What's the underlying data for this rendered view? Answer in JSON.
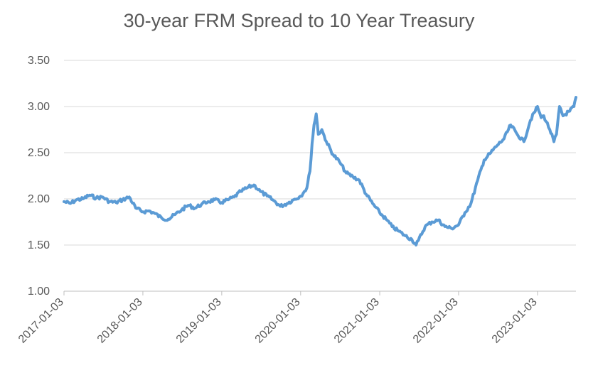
{
  "chart_data": {
    "type": "line",
    "title": "30-year FRM Spread to 10 Year Treasury",
    "xlabel": "",
    "ylabel": "",
    "ylim": [
      1.0,
      3.5
    ],
    "yticks": [
      "1.00",
      "1.50",
      "2.00",
      "2.50",
      "3.00",
      "3.50"
    ],
    "xtick_labels": [
      "2017-01-03",
      "2018-01-03",
      "2019-01-03",
      "2020-01-03",
      "2021-01-03",
      "2022-01-03",
      "2023-01-03"
    ],
    "xlim": [
      "2017-01-03",
      "2023-06-30"
    ],
    "grid": true,
    "legend": "none",
    "line_color": "#5b9bd5",
    "series": [
      {
        "points": [
          [
            "2017-01-03",
            1.97
          ],
          [
            "2017-02-01",
            1.95
          ],
          [
            "2017-03-01",
            1.99
          ],
          [
            "2017-04-01",
            2.0
          ],
          [
            "2017-05-01",
            2.04
          ],
          [
            "2017-06-01",
            2.01
          ],
          [
            "2017-07-01",
            2.02
          ],
          [
            "2017-08-01",
            1.97
          ],
          [
            "2017-09-01",
            1.96
          ],
          [
            "2017-10-01",
            1.99
          ],
          [
            "2017-11-01",
            2.02
          ],
          [
            "2017-12-01",
            1.9
          ],
          [
            "2018-01-03",
            1.86
          ],
          [
            "2018-02-01",
            1.87
          ],
          [
            "2018-03-01",
            1.84
          ],
          [
            "2018-04-01",
            1.79
          ],
          [
            "2018-05-01",
            1.78
          ],
          [
            "2018-06-01",
            1.83
          ],
          [
            "2018-07-01",
            1.88
          ],
          [
            "2018-08-01",
            1.93
          ],
          [
            "2018-09-01",
            1.9
          ],
          [
            "2018-10-01",
            1.94
          ],
          [
            "2018-11-01",
            1.97
          ],
          [
            "2018-12-01",
            1.99
          ],
          [
            "2019-01-03",
            1.96
          ],
          [
            "2019-02-01",
            1.99
          ],
          [
            "2019-03-01",
            2.02
          ],
          [
            "2019-04-01",
            2.08
          ],
          [
            "2019-05-01",
            2.12
          ],
          [
            "2019-06-01",
            2.15
          ],
          [
            "2019-07-01",
            2.08
          ],
          [
            "2019-08-01",
            2.03
          ],
          [
            "2019-09-01",
            1.98
          ],
          [
            "2019-10-01",
            1.92
          ],
          [
            "2019-11-01",
            1.95
          ],
          [
            "2019-12-01",
            1.99
          ],
          [
            "2020-01-03",
            2.03
          ],
          [
            "2020-01-20",
            2.08
          ],
          [
            "2020-02-01",
            2.12
          ],
          [
            "2020-02-15",
            2.3
          ],
          [
            "2020-02-25",
            2.6
          ],
          [
            "2020-03-05",
            2.8
          ],
          [
            "2020-03-15",
            2.92
          ],
          [
            "2020-03-25",
            2.7
          ],
          [
            "2020-04-10",
            2.75
          ],
          [
            "2020-05-01",
            2.62
          ],
          [
            "2020-06-01",
            2.48
          ],
          [
            "2020-07-01",
            2.4
          ],
          [
            "2020-08-01",
            2.28
          ],
          [
            "2020-09-01",
            2.24
          ],
          [
            "2020-10-01",
            2.2
          ],
          [
            "2020-11-01",
            2.05
          ],
          [
            "2020-12-01",
            1.95
          ],
          [
            "2021-01-03",
            1.85
          ],
          [
            "2021-02-01",
            1.78
          ],
          [
            "2021-03-01",
            1.7
          ],
          [
            "2021-04-01",
            1.65
          ],
          [
            "2021-05-01",
            1.6
          ],
          [
            "2021-06-01",
            1.56
          ],
          [
            "2021-06-20",
            1.5
          ],
          [
            "2021-07-01",
            1.55
          ],
          [
            "2021-08-01",
            1.7
          ],
          [
            "2021-09-01",
            1.75
          ],
          [
            "2021-10-01",
            1.77
          ],
          [
            "2021-11-01",
            1.7
          ],
          [
            "2021-12-01",
            1.68
          ],
          [
            "2022-01-03",
            1.72
          ],
          [
            "2022-02-01",
            1.85
          ],
          [
            "2022-03-01",
            1.95
          ],
          [
            "2022-04-01",
            2.2
          ],
          [
            "2022-05-01",
            2.42
          ],
          [
            "2022-06-01",
            2.5
          ],
          [
            "2022-07-01",
            2.58
          ],
          [
            "2022-08-01",
            2.65
          ],
          [
            "2022-09-01",
            2.8
          ],
          [
            "2022-10-01",
            2.7
          ],
          [
            "2022-11-01",
            2.62
          ],
          [
            "2022-12-01",
            2.85
          ],
          [
            "2023-01-03",
            3.0
          ],
          [
            "2023-01-20",
            2.88
          ],
          [
            "2023-02-01",
            2.9
          ],
          [
            "2023-03-01",
            2.75
          ],
          [
            "2023-03-20",
            2.62
          ],
          [
            "2023-04-01",
            2.7
          ],
          [
            "2023-04-15",
            3.0
          ],
          [
            "2023-05-01",
            2.9
          ],
          [
            "2023-06-01",
            2.95
          ],
          [
            "2023-06-20",
            3.0
          ],
          [
            "2023-06-30",
            3.1
          ]
        ]
      }
    ]
  }
}
